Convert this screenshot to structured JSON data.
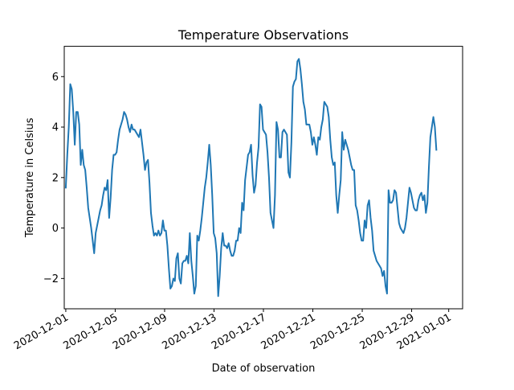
{
  "chart_data": {
    "type": "line",
    "title": "Temperature Observations",
    "xlabel": "Date of observation",
    "ylabel": "Temperature in Celsius",
    "x_start": "2020-12-01",
    "x_end": "2020-12-31",
    "xlim": [
      "2020-11-30T21:00",
      "2021-01-02T03:00"
    ],
    "ylim": [
      -3.2,
      7.2
    ],
    "grid": false,
    "yticks": [
      -2,
      0,
      2,
      4,
      6
    ],
    "xticks": [
      "2020-12-01",
      "2020-12-05",
      "2020-12-09",
      "2020-12-13",
      "2020-12-17",
      "2020-12-21",
      "2020-12-25",
      "2020-12-29",
      "2021-01-01"
    ],
    "line_color": "#1f77b4",
    "series": [
      {
        "values": [
          1.6,
          2.9,
          4.0,
          5.7,
          5.5,
          4.6,
          3.3,
          4.6,
          4.6,
          4.1,
          2.5,
          3.1,
          2.5,
          2.3,
          1.6,
          0.8,
          0.4,
          0.0,
          -0.5,
          -1.0,
          -0.2,
          0.1,
          0.4,
          0.7,
          0.9,
          1.3,
          1.6,
          1.5,
          1.9,
          0.4,
          1.2,
          2.3,
          2.9,
          2.9,
          3.0,
          3.5,
          3.9,
          4.1,
          4.3,
          4.6,
          4.5,
          4.3,
          4.0,
          3.8,
          4.1,
          3.9,
          3.9,
          3.8,
          3.7,
          3.6,
          3.9,
          3.4,
          2.9,
          2.3,
          2.6,
          2.7,
          1.8,
          0.6,
          0.1,
          -0.3,
          -0.2,
          -0.3,
          -0.1,
          -0.3,
          -0.2,
          0.3,
          -0.1,
          -0.1,
          -0.7,
          -1.6,
          -2.4,
          -2.3,
          -2.0,
          -2.1,
          -1.2,
          -1.0,
          -2.0,
          -2.2,
          -1.4,
          -1.3,
          -1.3,
          -1.1,
          -1.4,
          -0.2,
          -1.3,
          -1.9,
          -2.6,
          -2.3,
          -0.3,
          -0.5,
          -0.1,
          0.4,
          1.0,
          1.6,
          2.0,
          2.6,
          3.3,
          2.5,
          1.3,
          -0.2,
          -0.4,
          -1.0,
          -2.7,
          -1.9,
          -0.8,
          -0.2,
          -0.7,
          -0.7,
          -0.8,
          -0.6,
          -0.9,
          -1.1,
          -1.1,
          -0.9,
          -0.5,
          -0.5,
          0.0,
          -0.2,
          1.0,
          0.7,
          1.9,
          2.4,
          2.9,
          3.0,
          3.3,
          2.1,
          1.4,
          1.7,
          2.6,
          3.2,
          4.9,
          4.8,
          3.9,
          3.8,
          3.7,
          3.0,
          2.0,
          0.6,
          0.3,
          0.0,
          1.3,
          4.2,
          3.9,
          2.8,
          2.8,
          3.8,
          3.9,
          3.8,
          3.7,
          2.2,
          2.0,
          3.4,
          5.6,
          5.8,
          5.9,
          6.6,
          6.7,
          6.3,
          5.7,
          5.0,
          4.7,
          4.1,
          4.1,
          4.1,
          3.8,
          3.3,
          3.6,
          3.3,
          2.9,
          3.6,
          3.5,
          4.0,
          4.3,
          5.0,
          4.9,
          4.8,
          4.4,
          3.5,
          2.8,
          2.5,
          2.6,
          1.3,
          0.6,
          1.3,
          1.9,
          3.8,
          3.1,
          3.5,
          3.3,
          3.1,
          2.8,
          2.5,
          2.3,
          2.3,
          0.9,
          0.7,
          0.3,
          -0.2,
          -0.5,
          -0.5,
          0.3,
          0.0,
          0.9,
          1.1,
          0.4,
          -0.1,
          -0.9,
          -1.1,
          -1.3,
          -1.4,
          -1.5,
          -1.6,
          -1.9,
          -1.7,
          -2.3,
          -2.6,
          1.5,
          1.0,
          1.0,
          1.1,
          1.5,
          1.4,
          0.8,
          0.2,
          0.0,
          -0.1,
          -0.2,
          0.0,
          0.4,
          1.0,
          1.6,
          1.4,
          1.1,
          0.8,
          0.7,
          0.7,
          1.1,
          1.3,
          1.4,
          1.1,
          1.3,
          0.6,
          1.0,
          2.4,
          3.6,
          4.0,
          4.4,
          4.0,
          3.1
        ]
      }
    ]
  }
}
